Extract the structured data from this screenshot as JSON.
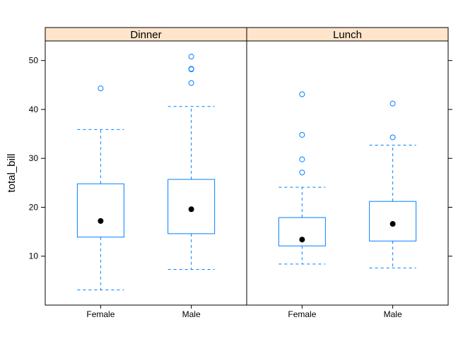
{
  "chart_data": {
    "type": "box",
    "ylabel": "total_bill",
    "ylim": [
      0,
      54
    ],
    "yticks": [
      10,
      20,
      30,
      40,
      50
    ],
    "categories": [
      "Female",
      "Male"
    ],
    "panels": [
      {
        "name": "Dinner",
        "boxes": [
          {
            "category": "Female",
            "whisker_low": 3.1,
            "q1": 13.9,
            "median": 17.2,
            "q3": 24.8,
            "whisker_high": 35.9,
            "outliers": [
              44.3
            ]
          },
          {
            "category": "Male",
            "whisker_low": 7.3,
            "q1": 14.6,
            "median": 19.6,
            "q3": 25.7,
            "whisker_high": 40.6,
            "outliers": [
              45.4,
              48.2,
              48.3,
              50.8
            ]
          }
        ]
      },
      {
        "name": "Lunch",
        "boxes": [
          {
            "category": "Female",
            "whisker_low": 8.4,
            "q1": 12.1,
            "median": 13.4,
            "q3": 17.9,
            "whisker_high": 24.1,
            "outliers": [
              27.1,
              29.8,
              34.8,
              43.1
            ]
          },
          {
            "category": "Male",
            "whisker_low": 7.6,
            "q1": 13.1,
            "median": 16.6,
            "q3": 21.2,
            "whisker_high": 32.7,
            "outliers": [
              34.3,
              41.2
            ]
          }
        ]
      }
    ],
    "colors": {
      "box": "#0080ff",
      "median_dot": "#000000",
      "strip": "#ffe5cc",
      "axis": "#000000"
    }
  }
}
